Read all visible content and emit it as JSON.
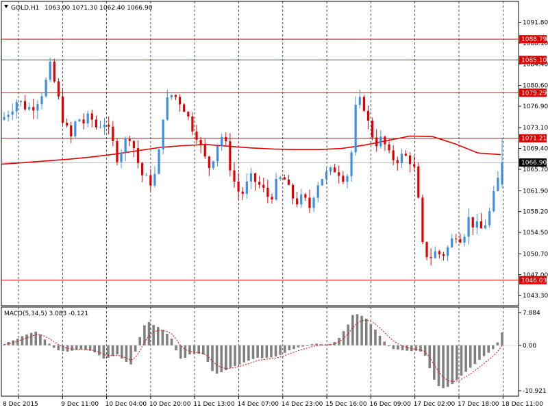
{
  "header": {
    "symbol": "GOLD,H1",
    "ohlc": "1063.00 1071.30 1062.40 1066.90"
  },
  "indicator": {
    "label": "MACD(5,34,5) 3.083 -0.121",
    "axis": [
      "7.884",
      "0.00",
      "-10.921"
    ]
  },
  "chart_data": {
    "type": "candlestick",
    "price_ticks": [
      "1091.80",
      "1088.10",
      "1084.40",
      "1080.60",
      "1076.90",
      "1073.10",
      "1069.40",
      "1065.70",
      "1061.90",
      "1058.20",
      "1054.50",
      "1050.70",
      "1047.00",
      "1043.30"
    ],
    "ylim": [
      1041.5,
      1095.5
    ],
    "levels": [
      {
        "value": 1088.79,
        "label": "1088.79"
      },
      {
        "value": 1085.1,
        "label": "1085.10"
      },
      {
        "value": 1079.29,
        "label": "1079.29"
      },
      {
        "value": 1071.21,
        "label": "1071.21"
      },
      {
        "value": 1046.03,
        "label": "1046.03"
      }
    ],
    "current_price": {
      "value": 1066.9,
      "label": "1066.90"
    },
    "x_labels": [
      "8 Dec 2015",
      "9 Dec 11:00",
      "10 Dec 04:00",
      "10 Dec 20:00",
      "11 Dec 13:00",
      "14 Dec 07:00",
      "14 Dec 23:00",
      "15 Dec 16:00",
      "16 Dec 09:00",
      "17 Dec 02:00",
      "17 Dec 18:00",
      "18 Dec 11:00"
    ],
    "moving_average": [
      1066.6,
      1066.9,
      1067.2,
      1067.5,
      1067.9,
      1068.4,
      1069.0,
      1069.6,
      1069.9,
      1070.1,
      1069.8,
      1069.5,
      1069.3,
      1069.2,
      1069.2,
      1069.4,
      1070.0,
      1070.8,
      1071.6,
      1071.5,
      1070.2,
      1068.6,
      1068.3
    ],
    "close_path": [
      1075,
      1076.5,
      1078,
      1077,
      1076.5,
      1078,
      1080,
      1084,
      1079,
      1074,
      1071,
      1075,
      1074,
      1075,
      1073,
      1074.5,
      1071.5,
      1068,
      1070,
      1072,
      1067.5,
      1064,
      1063.5,
      1065,
      1076,
      1079,
      1078.5,
      1077,
      1074,
      1072,
      1068,
      1066,
      1070,
      1072,
      1066.5,
      1062,
      1061.5,
      1064,
      1063.5,
      1062,
      1060.5,
      1063,
      1064.5,
      1061.5,
      1060,
      1060.5,
      1059,
      1063,
      1064.5,
      1065,
      1066,
      1064.5,
      1065,
      1077,
      1078,
      1073,
      1070.5,
      1071,
      1068,
      1067.5,
      1068,
      1067.8,
      1065,
      1052,
      1050,
      1051,
      1050.5,
      1052,
      1054.5,
      1053.5,
      1057,
      1055.5,
      1055,
      1057.5,
      1062,
      1066.9
    ],
    "macd": [
      0.2,
      0.8,
      1.2,
      1.6,
      2.2,
      2.6,
      3.0,
      3.3,
      2.6,
      1.4,
      0.4,
      -0.6,
      -1.2,
      -1.4,
      -1.5,
      -1.3,
      -1.1,
      -1.0,
      -1.1,
      -1.3,
      -1.7,
      -2.4,
      -3.2,
      -3.0,
      -2.6,
      -2.2,
      -3.2,
      -4.0,
      -4.6,
      -1.5,
      2.0,
      4.8,
      5.6,
      4.9,
      4.4,
      3.7,
      2.8,
      1.6,
      -1.2,
      -3.2,
      -3.0,
      -2.2,
      -2.1,
      -2.0,
      -2.2,
      -4.0,
      -6.2,
      -6.8,
      -6.5,
      -6.0,
      -5.4,
      -5.0,
      -4.6,
      -4.1,
      -3.7,
      -3.3,
      -3.0,
      -3.1,
      -3.0,
      -2.9,
      -2.7,
      -2.3,
      -1.8,
      -1.2,
      -0.9,
      -0.5,
      -0.3,
      0.0,
      0.3,
      0.4,
      0.3,
      0.2,
      0.3,
      0.8,
      1.8,
      3.4,
      5.0,
      7.3,
      7.5,
      7.1,
      6.4,
      5.1,
      3.8,
      2.3,
      0.9,
      -0.2,
      -0.9,
      -1.0,
      -1.2,
      -1.3,
      -1.4,
      -1.3,
      -1.5,
      -2.5,
      -5.5,
      -8.3,
      -9.8,
      -10.3,
      -10.0,
      -9.3,
      -8.3,
      -7.3,
      -6.4,
      -5.4,
      -4.5,
      -3.5,
      -2.6,
      -1.8,
      -0.9,
      0.7,
      3.1
    ],
    "macd_ylim": [
      -10.921,
      7.884
    ]
  }
}
